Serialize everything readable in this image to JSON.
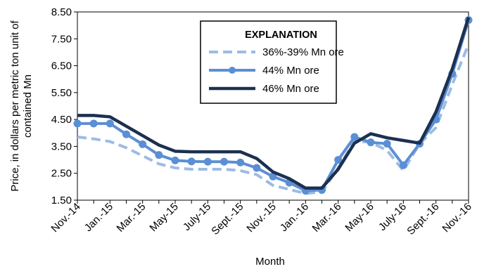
{
  "chart_data": {
    "type": "line",
    "title": "",
    "xlabel": "Month",
    "ylabel": "Price, in dollars per metric ton unit of contained Mn",
    "ylim": [
      1.5,
      8.5
    ],
    "yticks": [
      "1.50",
      "2.50",
      "3.50",
      "4.50",
      "5.50",
      "6.50",
      "7.50",
      "8.50"
    ],
    "x": [
      "Nov.-14",
      "Dec.-14",
      "Jan.-15",
      "Feb.-15",
      "Mar.-15",
      "Apr.-15",
      "May-15",
      "June-15",
      "July-15",
      "Aug.-15",
      "Sept.-15",
      "Oct.-15",
      "Nov.-15",
      "Dec.-15",
      "Jan.-16",
      "Feb.-16",
      "Mar.-16",
      "Apr.-16",
      "May-16",
      "June-16",
      "July-16",
      "Aug.-16",
      "Sept.-16",
      "Oct.-16",
      "Nov.-16"
    ],
    "xtick_labels": [
      "Nov.-14",
      "Jan.-15",
      "Mar.-15",
      "May-15",
      "July-15",
      "Sept.-15",
      "Nov.-15",
      "Jan.-16",
      "Mar.-16",
      "May-16",
      "July-16",
      "Sept.-16",
      "Nov.-16"
    ],
    "grid": false,
    "legend": {
      "title": "EXPLANATION",
      "placement": "top-center"
    },
    "series": [
      {
        "name": "36%-39% Mn ore",
        "color": "#9dbbe3",
        "style": "dashed",
        "values": [
          3.85,
          3.78,
          3.68,
          3.45,
          3.15,
          2.85,
          2.7,
          2.65,
          2.65,
          2.65,
          2.6,
          2.45,
          2.05,
          1.9,
          1.75,
          1.8,
          2.7,
          3.7,
          3.65,
          3.35,
          2.6,
          3.6,
          4.2,
          5.8,
          7.3
        ]
      },
      {
        "name": "44% Mn ore",
        "color": "#5b8fd4",
        "style": "solid-markers",
        "values": [
          4.35,
          4.35,
          4.35,
          3.95,
          3.58,
          3.18,
          2.98,
          2.94,
          2.93,
          2.93,
          2.9,
          2.7,
          2.38,
          2.15,
          1.85,
          1.88,
          3.0,
          3.85,
          3.65,
          3.6,
          2.8,
          3.6,
          4.5,
          6.2,
          8.2
        ]
      },
      {
        "name": "46% Mn ore",
        "color": "#1c3050",
        "style": "solid",
        "values": [
          4.65,
          4.65,
          4.6,
          4.25,
          3.9,
          3.55,
          3.32,
          3.3,
          3.3,
          3.3,
          3.3,
          3.05,
          2.55,
          2.3,
          1.95,
          1.95,
          2.65,
          3.62,
          3.97,
          3.82,
          3.72,
          3.62,
          4.78,
          6.38,
          8.3
        ]
      }
    ]
  }
}
